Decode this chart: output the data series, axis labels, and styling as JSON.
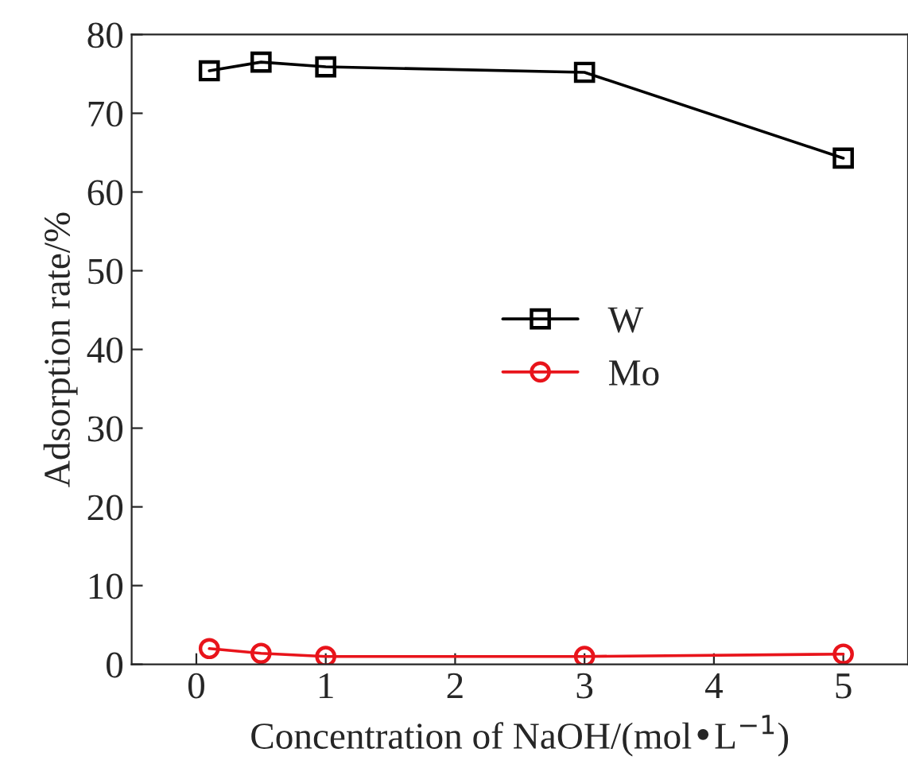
{
  "chart_data": {
    "type": "line",
    "xlabel": "Concentration of NaOH/(mol•L$^{−1}$)",
    "ylabel": "Adsorption rate/%",
    "x": [
      0.1,
      0.5,
      1,
      3,
      5
    ],
    "series": [
      {
        "name": "W",
        "color": "#000000",
        "marker": "square",
        "values": [
          75.4,
          76.5,
          75.9,
          75.2,
          64.3
        ]
      },
      {
        "name": "Mo",
        "color": "#e8141b",
        "marker": "circle",
        "values": [
          2.0,
          1.4,
          1.0,
          1.0,
          1.3
        ]
      }
    ],
    "xlim": [
      -0.5,
      5.5
    ],
    "xticks": [
      0,
      1,
      2,
      3,
      4,
      5
    ],
    "ylim": [
      0,
      80
    ],
    "yticks": [
      0,
      10,
      20,
      30,
      40,
      50,
      60,
      70,
      80
    ],
    "grid": false,
    "legend": "center right",
    "line_style": "solid"
  }
}
